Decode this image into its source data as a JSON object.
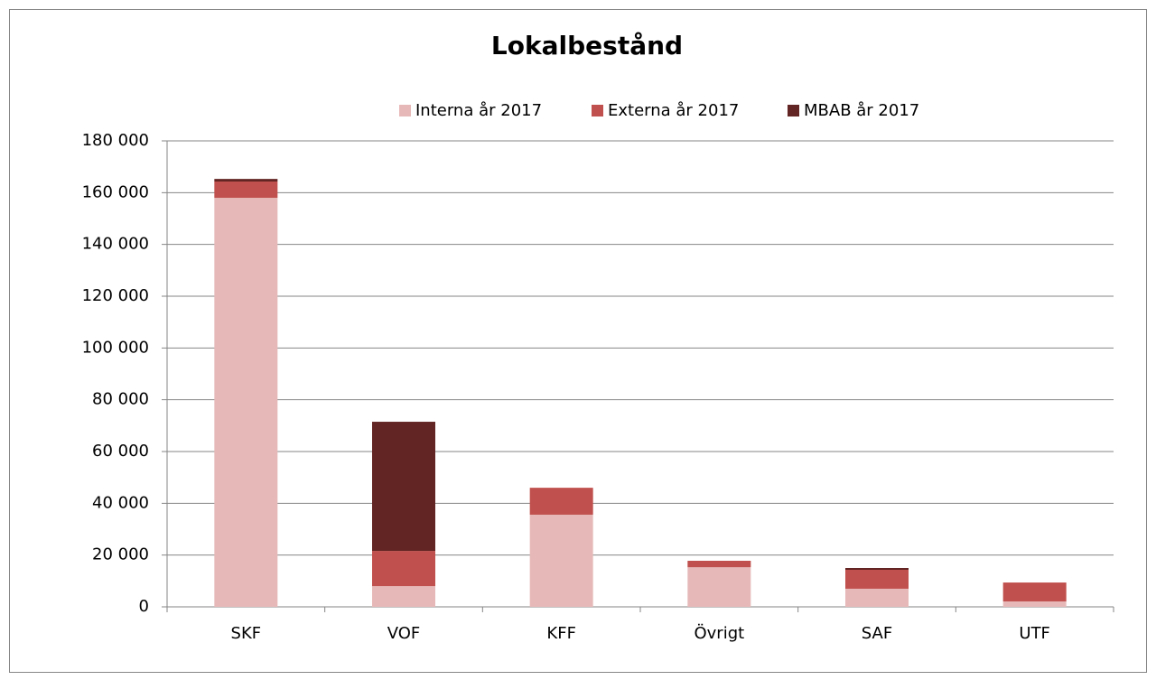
{
  "chart_data": {
    "type": "stacked_bar",
    "title": "Lokalbestånd",
    "categories": [
      "SKF",
      "VOF",
      "KFF",
      "Övrigt",
      "SAF",
      "UTF"
    ],
    "series": [
      {
        "name": "Interna år 2017",
        "color": "#e6b9b8",
        "values": [
          158000,
          8000,
          35600,
          15300,
          7000,
          2100
        ]
      },
      {
        "name": "Externa år 2017",
        "color": "#c0504d",
        "values": [
          6300,
          13600,
          10400,
          2500,
          7300,
          7300
        ]
      },
      {
        "name": "MBAB år 2017",
        "color": "#632523",
        "values": [
          1000,
          49900,
          0,
          0,
          700,
          0
        ]
      }
    ],
    "ylim": [
      0,
      180000
    ],
    "yticks": [
      0,
      {
        "value": 20000,
        "label": "20 000"
      },
      {
        "value": 40000,
        "label": "40 000"
      },
      {
        "value": 60000,
        "label": "60 000"
      },
      {
        "value": 80000,
        "label": "80 000"
      },
      {
        "value": 100000,
        "label": "100 000"
      },
      {
        "value": 120000,
        "label": "120 000"
      },
      {
        "value": 140000,
        "label": "140 000"
      },
      {
        "value": 160000,
        "label": "160 000"
      },
      {
        "value": 180000,
        "label": "180 000"
      }
    ],
    "grid": true,
    "legend": "top"
  }
}
